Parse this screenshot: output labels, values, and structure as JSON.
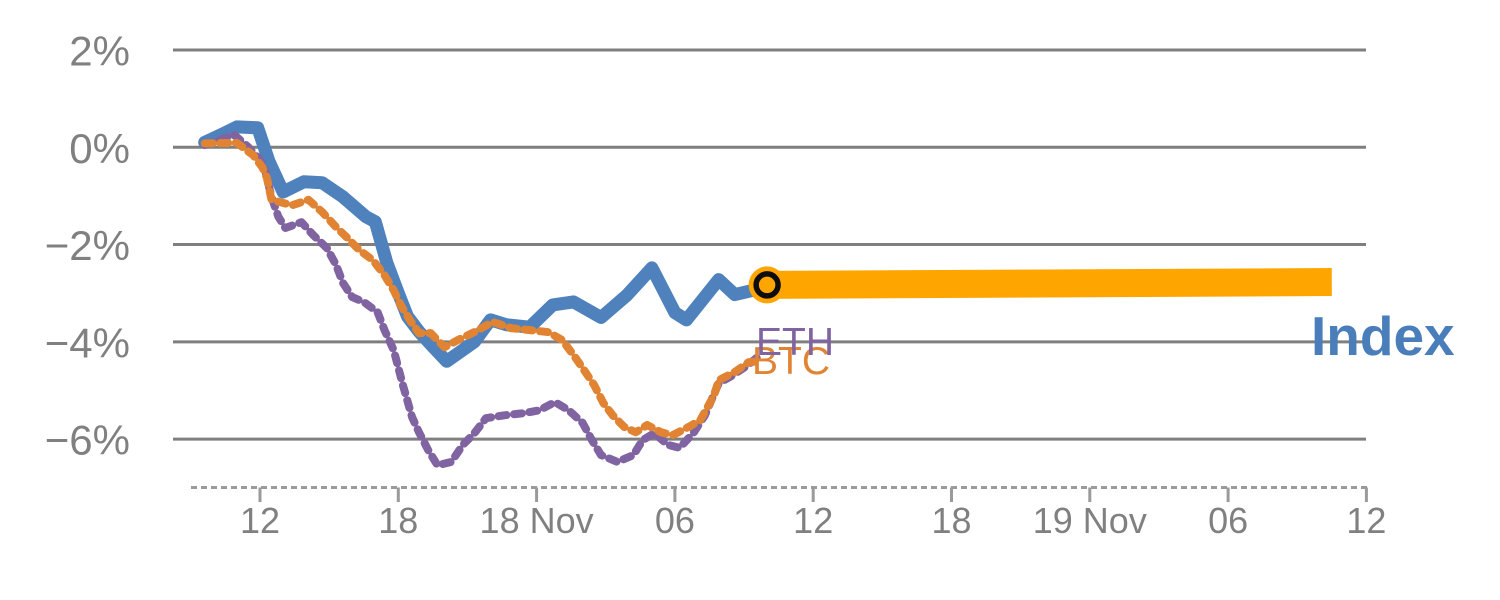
{
  "chart": {
    "background_color": "#ffffff",
    "grid_color": "#7f7f7f",
    "axis_color": "#9a9a9a",
    "label_color": "#808080",
    "y_axis": {
      "tick_labels": [
        "2%",
        "0%",
        "−2%",
        "−4%",
        "−6%"
      ],
      "tick_values": [
        2,
        0,
        -2,
        -4,
        -6
      ]
    },
    "x_axis": {
      "ticks": [
        {
          "label": "12",
          "hour": 0
        },
        {
          "label": "18",
          "hour": 6
        },
        {
          "label": "18 Nov",
          "hour": 12
        },
        {
          "label": "06",
          "hour": 18
        },
        {
          "label": "12",
          "hour": 24
        },
        {
          "label": "18",
          "hour": 30
        },
        {
          "label": "19 Nov",
          "hour": 36
        },
        {
          "label": "06",
          "hour": 42
        },
        {
          "label": "12",
          "hour": 48
        }
      ]
    }
  },
  "chart_data": {
    "type": "line",
    "title": "",
    "xlabel": "",
    "ylabel": "",
    "x_unit": "hours relative to 18 Nov 00:00 minus 12h (tick '12' of 17 Nov = 0)",
    "xlim": [
      -3.1,
      48.2
    ],
    "ylim": [
      -7.0,
      3.0
    ],
    "grid": "horizontal",
    "legend_position": "end-of-line labels",
    "series": [
      {
        "name": "Index",
        "color": "#4f81bd",
        "style": "solid",
        "points": [
          [
            -2.4,
            0.1
          ],
          [
            -1.6,
            0.28
          ],
          [
            -1.0,
            0.42
          ],
          [
            -0.1,
            0.4
          ],
          [
            0.4,
            -0.3
          ],
          [
            1.0,
            -0.92
          ],
          [
            1.9,
            -0.71
          ],
          [
            2.7,
            -0.73
          ],
          [
            3.6,
            -1.02
          ],
          [
            4.6,
            -1.43
          ],
          [
            5.0,
            -1.53
          ],
          [
            5.5,
            -2.37
          ],
          [
            6.0,
            -3.0
          ],
          [
            6.4,
            -3.48
          ],
          [
            6.9,
            -3.79
          ],
          [
            7.5,
            -4.1
          ],
          [
            8.1,
            -4.4
          ],
          [
            9.3,
            -4.0
          ],
          [
            10.0,
            -3.55
          ],
          [
            10.7,
            -3.65
          ],
          [
            11.7,
            -3.7
          ],
          [
            12.7,
            -3.24
          ],
          [
            13.6,
            -3.18
          ],
          [
            14.8,
            -3.5
          ],
          [
            15.9,
            -3.05
          ],
          [
            17.0,
            -2.48
          ],
          [
            18.0,
            -3.4
          ],
          [
            18.5,
            -3.55
          ],
          [
            19.9,
            -2.72
          ],
          [
            20.6,
            -3.03
          ],
          [
            21.3,
            -2.95
          ],
          [
            22.0,
            -2.83
          ]
        ]
      },
      {
        "name": "ETH",
        "color": "#8064a2",
        "style": "dotted",
        "points": [
          [
            -2.4,
            0.05
          ],
          [
            -1.1,
            0.25
          ],
          [
            -0.5,
            0.0
          ],
          [
            0.0,
            -0.26
          ],
          [
            0.2,
            -0.43
          ],
          [
            0.5,
            -1.02
          ],
          [
            0.8,
            -1.43
          ],
          [
            1.1,
            -1.66
          ],
          [
            1.8,
            -1.54
          ],
          [
            2.3,
            -1.8
          ],
          [
            2.9,
            -2.07
          ],
          [
            3.3,
            -2.42
          ],
          [
            3.6,
            -2.79
          ],
          [
            4.0,
            -3.08
          ],
          [
            4.5,
            -3.18
          ],
          [
            5.1,
            -3.39
          ],
          [
            5.4,
            -3.76
          ],
          [
            5.8,
            -4.17
          ],
          [
            6.2,
            -4.89
          ],
          [
            6.6,
            -5.55
          ],
          [
            6.9,
            -5.86
          ],
          [
            7.3,
            -6.23
          ],
          [
            7.7,
            -6.54
          ],
          [
            8.3,
            -6.47
          ],
          [
            8.8,
            -6.12
          ],
          [
            9.3,
            -5.88
          ],
          [
            9.8,
            -5.57
          ],
          [
            10.6,
            -5.51
          ],
          [
            11.4,
            -5.47
          ],
          [
            12.1,
            -5.41
          ],
          [
            12.8,
            -5.24
          ],
          [
            13.4,
            -5.41
          ],
          [
            14.0,
            -5.67
          ],
          [
            14.4,
            -6.02
          ],
          [
            14.8,
            -6.33
          ],
          [
            15.5,
            -6.47
          ],
          [
            16.2,
            -6.33
          ],
          [
            16.6,
            -6.02
          ],
          [
            17.1,
            -5.88
          ],
          [
            17.7,
            -6.12
          ],
          [
            18.2,
            -6.18
          ],
          [
            18.8,
            -5.88
          ],
          [
            19.3,
            -5.51
          ],
          [
            19.9,
            -4.85
          ],
          [
            20.4,
            -4.72
          ],
          [
            21.1,
            -4.5
          ],
          [
            21.7,
            -4.27
          ]
        ]
      },
      {
        "name": "BTC",
        "color": "#e08433",
        "style": "dotted",
        "points": [
          [
            -2.4,
            0.08
          ],
          [
            -1.0,
            0.09
          ],
          [
            -0.3,
            -0.16
          ],
          [
            0.1,
            -0.41
          ],
          [
            0.3,
            -0.63
          ],
          [
            0.5,
            -1.08
          ],
          [
            0.9,
            -1.13
          ],
          [
            1.4,
            -1.19
          ],
          [
            2.1,
            -1.08
          ],
          [
            2.7,
            -1.33
          ],
          [
            3.3,
            -1.64
          ],
          [
            3.8,
            -1.87
          ],
          [
            4.3,
            -2.11
          ],
          [
            4.9,
            -2.32
          ],
          [
            5.4,
            -2.63
          ],
          [
            5.8,
            -2.94
          ],
          [
            6.1,
            -3.24
          ],
          [
            6.5,
            -3.55
          ],
          [
            6.9,
            -3.82
          ],
          [
            7.4,
            -3.82
          ],
          [
            8.0,
            -4.11
          ],
          [
            8.6,
            -3.96
          ],
          [
            9.3,
            -3.8
          ],
          [
            10.1,
            -3.59
          ],
          [
            10.9,
            -3.72
          ],
          [
            11.7,
            -3.76
          ],
          [
            12.5,
            -3.8
          ],
          [
            13.1,
            -3.96
          ],
          [
            13.6,
            -4.27
          ],
          [
            14.0,
            -4.54
          ],
          [
            14.5,
            -4.89
          ],
          [
            14.9,
            -5.26
          ],
          [
            15.3,
            -5.51
          ],
          [
            15.8,
            -5.75
          ],
          [
            16.3,
            -5.86
          ],
          [
            16.8,
            -5.71
          ],
          [
            17.4,
            -5.86
          ],
          [
            17.9,
            -5.92
          ],
          [
            18.6,
            -5.75
          ],
          [
            19.1,
            -5.61
          ],
          [
            19.7,
            -5.1
          ],
          [
            19.9,
            -4.79
          ],
          [
            20.6,
            -4.62
          ],
          [
            21.2,
            -4.42
          ],
          [
            21.6,
            -4.4
          ]
        ]
      },
      {
        "name": "Index projection",
        "color": "#ffa500",
        "style": "solid-thick",
        "points": [
          [
            22.0,
            -2.83
          ],
          [
            34.0,
            -2.8
          ],
          [
            46.5,
            -2.77
          ]
        ]
      }
    ],
    "marker": {
      "series": "Index",
      "x": 22.0,
      "y": -2.83,
      "fill": "#ffa500",
      "ring": "#0d0d0d"
    }
  }
}
